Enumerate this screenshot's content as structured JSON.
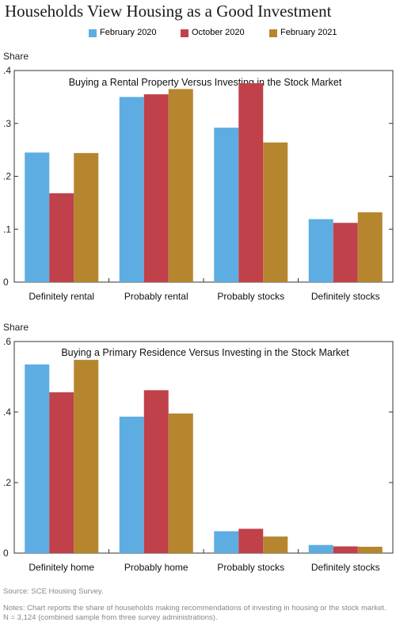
{
  "title": "Households View Housing as a Good Investment",
  "legend": [
    {
      "label": "February 2020",
      "color": "#5dade2"
    },
    {
      "label": "October 2020",
      "color": "#c0414a"
    },
    {
      "label": "February 2021",
      "color": "#b5862e"
    }
  ],
  "footer": {
    "source": "Source: SCE Housing Survey.",
    "notes": "Notes: Chart reports the share of households making recommendations of investing in housing or the stock market. N = 3,124 (combined sample from three survey administrations)."
  },
  "chart_data": [
    {
      "type": "bar",
      "title": "Buying a Rental Property Versus Investing in the Stock Market",
      "ylabel": "Share",
      "ylim": [
        0,
        0.4
      ],
      "yticks": [
        ".4",
        ".3",
        ".2",
        ".1",
        "0"
      ],
      "categories": [
        "Definitely rental",
        "Probably rental",
        "Probably stocks",
        "Definitely stocks"
      ],
      "series": [
        {
          "name": "February 2020",
          "values": [
            0.245,
            0.35,
            0.292,
            0.119
          ]
        },
        {
          "name": "October 2020",
          "values": [
            0.168,
            0.355,
            0.376,
            0.112
          ]
        },
        {
          "name": "February 2021",
          "values": [
            0.244,
            0.365,
            0.264,
            0.132
          ]
        }
      ],
      "legend": "top-center"
    },
    {
      "type": "bar",
      "title": "Buying a Primary Residence Versus Investing in the Stock Market",
      "ylabel": "Share",
      "ylim": [
        0,
        0.6
      ],
      "yticks": [
        ".6",
        ".4",
        ".2",
        "0"
      ],
      "categories": [
        "Definitely home",
        "Probably home",
        "Probably stocks",
        "Definitely stocks"
      ],
      "series": [
        {
          "name": "February 2020",
          "values": [
            0.535,
            0.387,
            0.062,
            0.023
          ]
        },
        {
          "name": "October 2020",
          "values": [
            0.456,
            0.462,
            0.069,
            0.019
          ]
        },
        {
          "name": "February 2021",
          "values": [
            0.548,
            0.396,
            0.047,
            0.018
          ]
        }
      ],
      "legend": "top-center"
    }
  ]
}
